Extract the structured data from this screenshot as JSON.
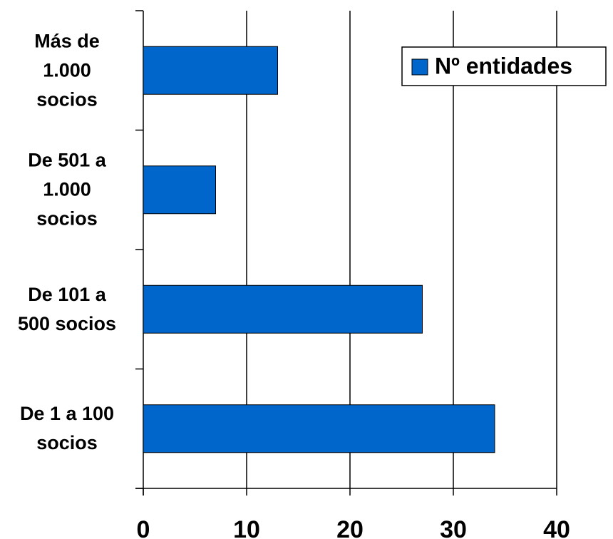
{
  "chart_data": {
    "type": "bar",
    "orientation": "horizontal",
    "categories": [
      "Más de\n1.000\nsocios",
      "De 501 a\n1.000\nsocios",
      "De 101 a\n500 socios",
      "De 1 a 100\nsocios"
    ],
    "series": [
      {
        "name": "Nº entidades",
        "color": "#0066cc",
        "values": [
          13,
          7,
          27,
          34
        ]
      }
    ],
    "xlim": [
      0,
      40
    ],
    "xticks": [
      0,
      10,
      20,
      30,
      40
    ],
    "grid": true,
    "legend": "upper right"
  }
}
